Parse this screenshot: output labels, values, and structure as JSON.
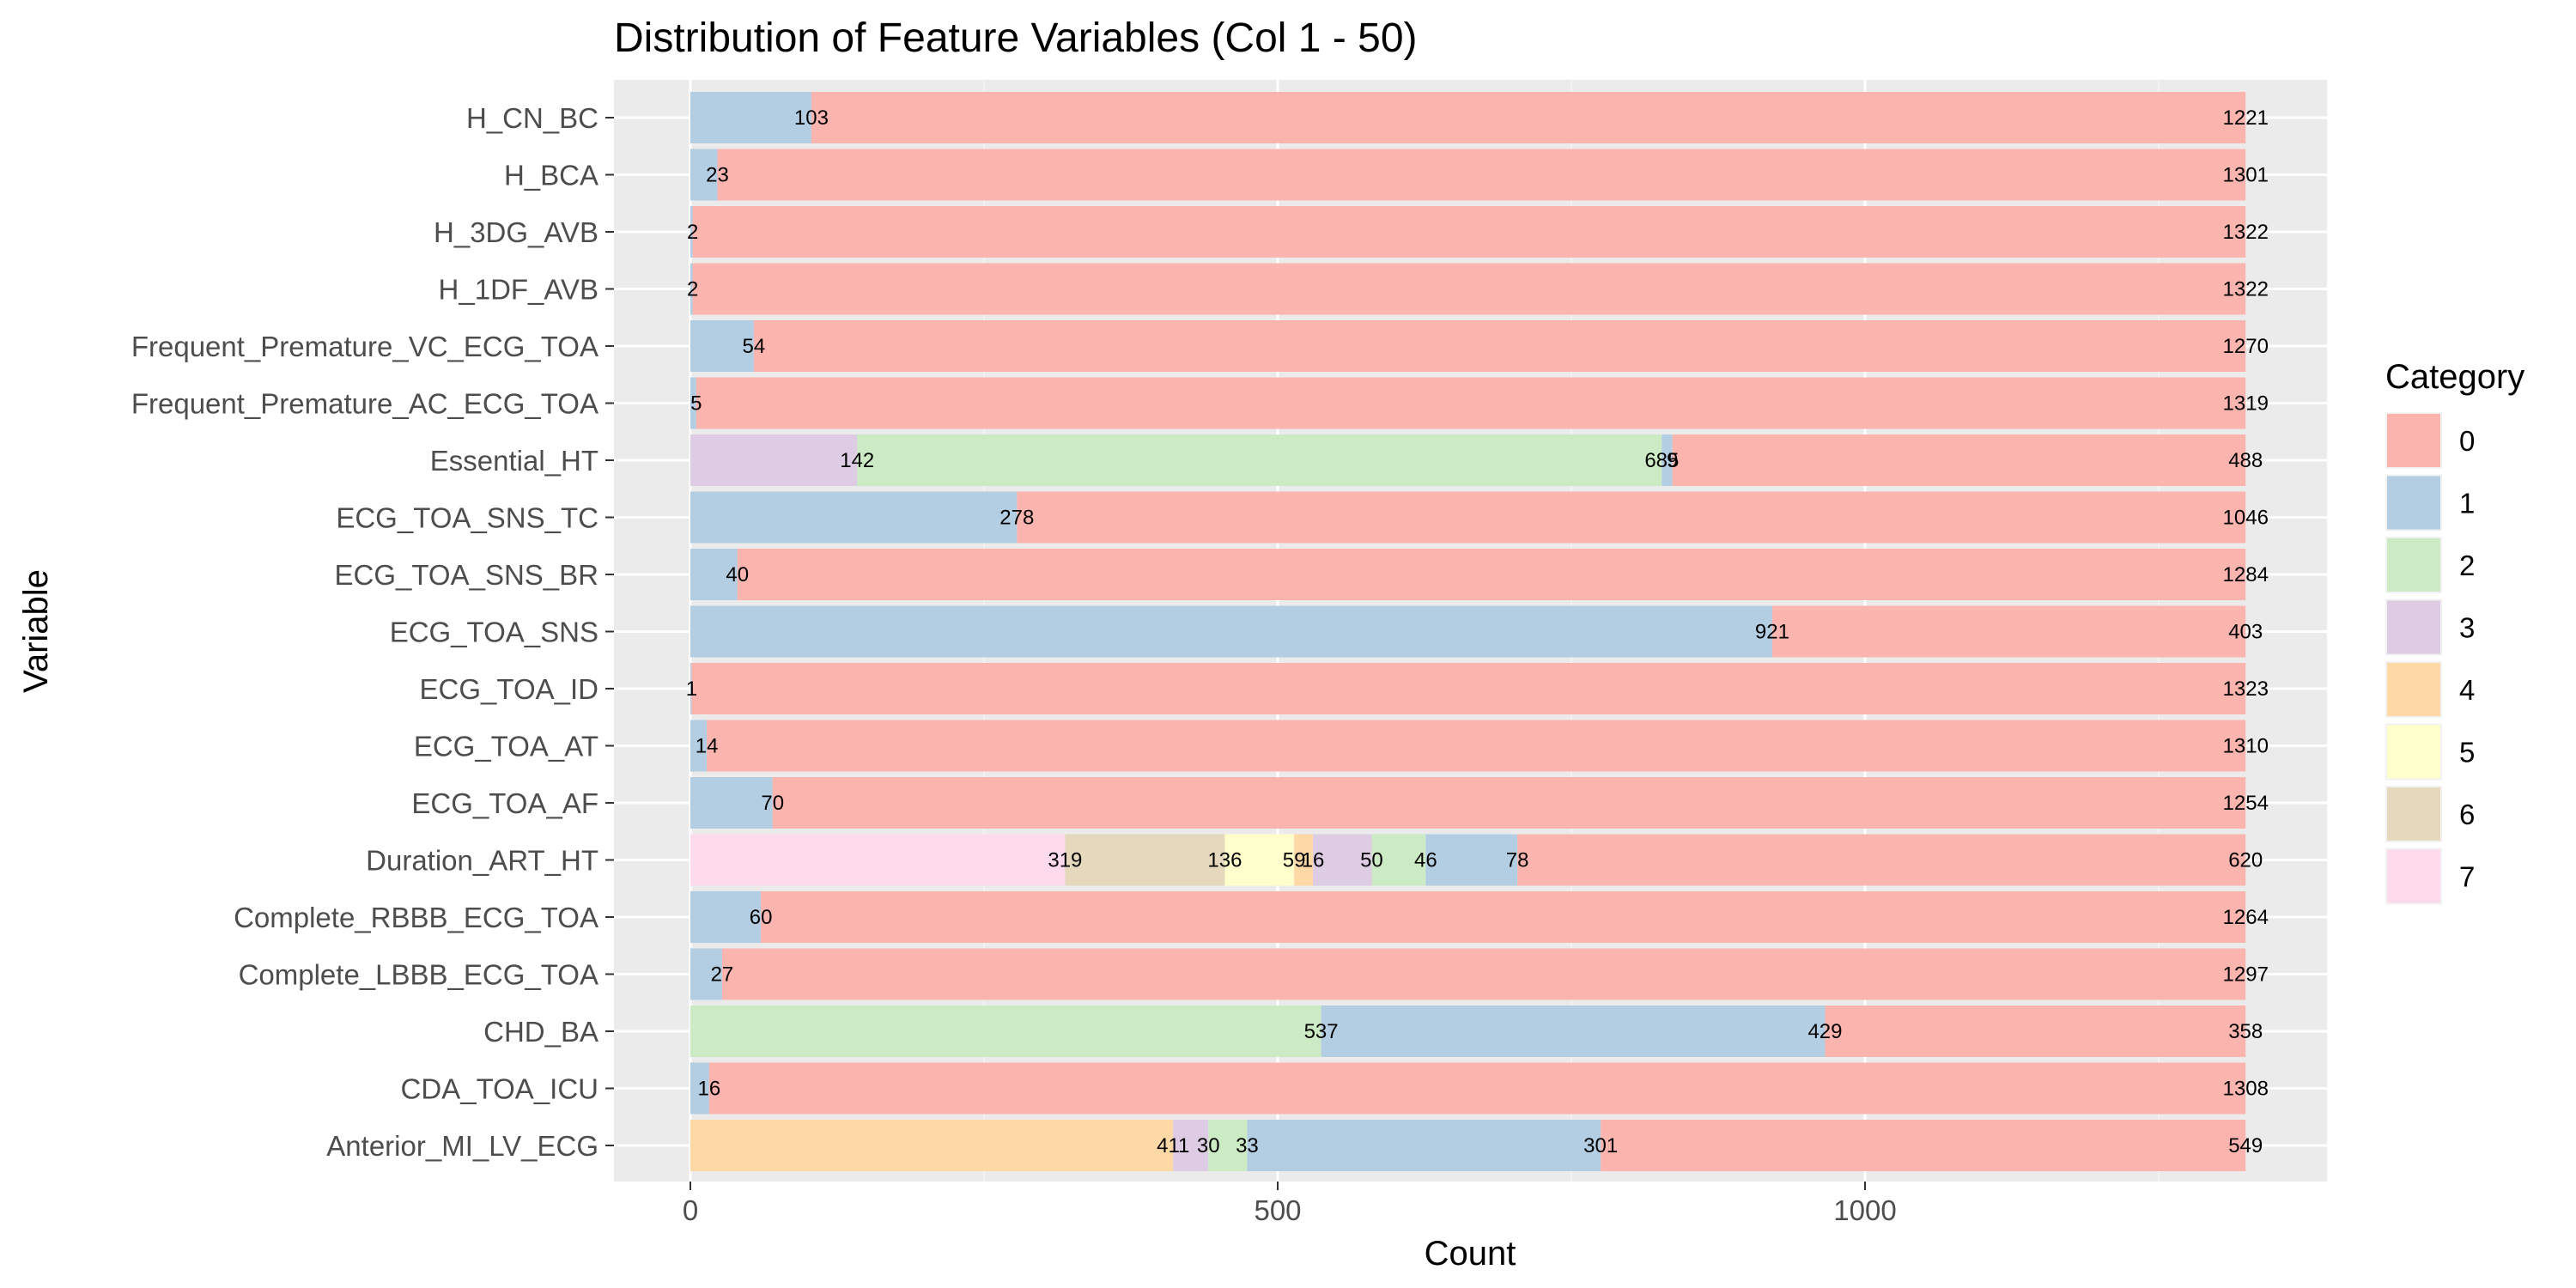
{
  "chart_data": {
    "type": "bar",
    "orientation": "horizontal",
    "stacked": true,
    "title": "Distribution of Feature Variables (Col 1 - 50)",
    "xlabel": "Count",
    "ylabel": "Variable",
    "xlim": [
      0,
      1324
    ],
    "xticks": [
      0,
      500,
      1000
    ],
    "grid": true,
    "legend": {
      "title": "Category",
      "position": "right",
      "entries": [
        "0",
        "1",
        "2",
        "3",
        "4",
        "5",
        "6",
        "7"
      ]
    },
    "colors": {
      "0": "#FBB4AE",
      "1": "#B3CDE3",
      "2": "#CCEBC5",
      "3": "#DECBE4",
      "4": "#FED9A6",
      "5": "#FFFFCC",
      "6": "#E5D8BD",
      "7": "#FDDAEC"
    },
    "stack_order_from_zero": [
      "7",
      "6",
      "5",
      "4",
      "3",
      "2",
      "1",
      "0"
    ],
    "bars": [
      {
        "variable": "H_CN_BC",
        "segments": {
          "0": 1221,
          "1": 103
        }
      },
      {
        "variable": "H_BCA",
        "segments": {
          "0": 1301,
          "1": 23
        }
      },
      {
        "variable": "H_3DG_AVB",
        "segments": {
          "0": 1322,
          "1": 2
        }
      },
      {
        "variable": "H_1DF_AVB",
        "segments": {
          "0": 1322,
          "1": 2
        }
      },
      {
        "variable": "Frequent_Premature_VC_ECG_TOA",
        "segments": {
          "0": 1270,
          "1": 54
        }
      },
      {
        "variable": "Frequent_Premature_AC_ECG_TOA",
        "segments": {
          "0": 1319,
          "1": 5
        }
      },
      {
        "variable": "Essential_HT",
        "segments": {
          "0": 488,
          "1": 9,
          "2": 685,
          "3": 142
        }
      },
      {
        "variable": "ECG_TOA_SNS_TC",
        "segments": {
          "0": 1046,
          "1": 278
        }
      },
      {
        "variable": "ECG_TOA_SNS_BR",
        "segments": {
          "0": 1284,
          "1": 40
        }
      },
      {
        "variable": "ECG_TOA_SNS",
        "segments": {
          "0": 403,
          "1": 921
        }
      },
      {
        "variable": "ECG_TOA_ID",
        "segments": {
          "0": 1323,
          "1": 1
        }
      },
      {
        "variable": "ECG_TOA_AT",
        "segments": {
          "0": 1310,
          "1": 14
        }
      },
      {
        "variable": "ECG_TOA_AF",
        "segments": {
          "0": 1254,
          "1": 70
        }
      },
      {
        "variable": "Duration_ART_HT",
        "segments": {
          "0": 620,
          "1": 78,
          "2": 46,
          "3": 50,
          "4": 16,
          "5": 59,
          "6": 136,
          "7": 319
        }
      },
      {
        "variable": "Complete_RBBB_ECG_TOA",
        "segments": {
          "0": 1264,
          "1": 60
        }
      },
      {
        "variable": "Complete_LBBB_ECG_TOA",
        "segments": {
          "0": 1297,
          "1": 27
        }
      },
      {
        "variable": "CHD_BA",
        "segments": {
          "0": 358,
          "1": 429,
          "2": 537
        }
      },
      {
        "variable": "CDA_TOA_ICU",
        "segments": {
          "0": 1308,
          "1": 16
        }
      },
      {
        "variable": "Anterior_MI_LV_ECG",
        "segments": {
          "0": 549,
          "1": 301,
          "2": 33,
          "3": 30,
          "4": 411
        }
      }
    ]
  }
}
